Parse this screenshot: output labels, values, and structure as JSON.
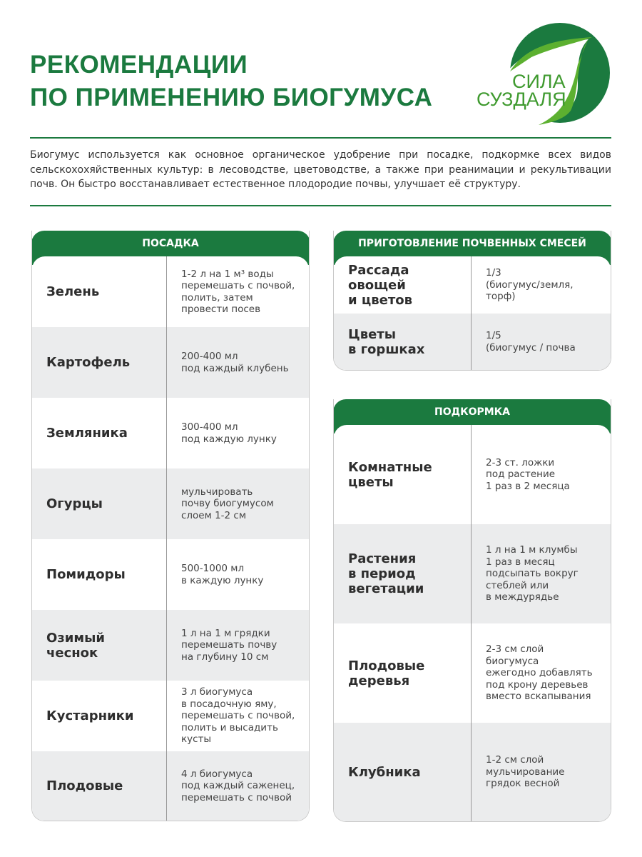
{
  "title": {
    "line1": "РЕКОМЕНДАЦИИ",
    "line2": "ПО ПРИМЕНЕНИЮ БИОГУМУСА"
  },
  "logo": {
    "text1": "СИЛА",
    "text2": "СУЗДАЛЯ",
    "colors": [
      "#1b7a3f",
      "#5cb030"
    ]
  },
  "intro": "Биогумус используется как основное органическое удобрение при посадке, подкормке всех видов сельскохохяйственных культур: в лесоводстве, цветоводстве, а также при реанимации и рекультивации почв. Он быстро восстанавливает естественное плодородие почвы, улучшает её структуру.",
  "planting": {
    "header": "ПОСАДКА",
    "rows": [
      {
        "name": "Зелень",
        "value": "1-2 л на 1 м³ воды\nперемешать с почвой,\nполить, затем\nпровести посев"
      },
      {
        "name": "Картофель",
        "value": "200-400 мл\nпод каждый клубень"
      },
      {
        "name": "Земляника",
        "value": "300-400 мл\nпод каждую лунку"
      },
      {
        "name": "Огурцы",
        "value": "мульчировать\nпочву биогумусом\nслоем 1-2 см"
      },
      {
        "name": "Помидоры",
        "value": "500-1000 мл\nв каждую лунку"
      },
      {
        "name": "Озимый\nчеснок",
        "value": "1 л на 1 м грядки\nперемешать почву\nна глубину 10 см"
      },
      {
        "name": "Кустарники",
        "value": "3 л биогумуса\nв посадочную яму,\nперемешать с почвой,\nполить и высадить\nкусты"
      },
      {
        "name": "Плодовые",
        "value": "4 л биогумуса\nпод каждый саженец,\nперемешать с почвой"
      }
    ]
  },
  "mixes": {
    "header": "ПРИГОТОВЛЕНИЕ ПОЧВЕННЫХ СМЕСЕЙ",
    "rows": [
      {
        "name": "Рассада овощей\nи цветов",
        "value": "1/3\n(биогумус/земля,\nторф)"
      },
      {
        "name": "Цветы\nв горшках",
        "value": "1/5\n(биогумус / почва"
      }
    ]
  },
  "feeding": {
    "header": "ПОДКОРМКА",
    "rows": [
      {
        "name": "Комнатные\nцветы",
        "value": "2-3 ст. ложки\nпод растение\n1 раз в 2 месяца"
      },
      {
        "name": "Растения\nв период\nвегетации",
        "value": "1 л на 1 м клумбы\n1 раз в месяц\nподсыпать вокруг\nстеблей или\nв междурядье"
      },
      {
        "name": "Плодовые\nдеревья",
        "value": "2-3 см слой\nбиогумуса\nежегодно добавлять\nпод крону деревьев\nвместо вскапывания"
      },
      {
        "name": "Клубника",
        "value": "1-2 см слой\nмульчирование\nгрядок весной"
      }
    ]
  }
}
